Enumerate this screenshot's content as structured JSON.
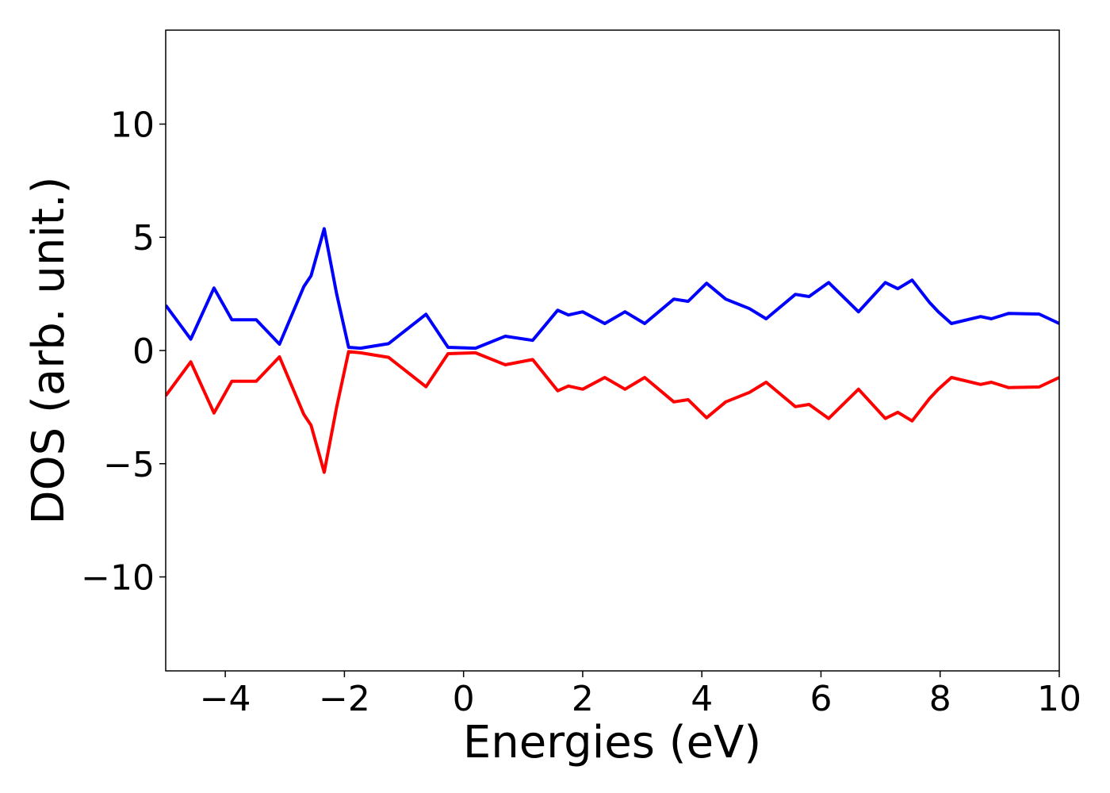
{
  "chart_data": {
    "type": "line",
    "xlabel": "Energies (eV)",
    "ylabel": "DOS (arb. unit.)",
    "xlim": [
      -5,
      10
    ],
    "ylim": [
      -14.15,
      14.15
    ],
    "xticks": [
      {
        "value": -4,
        "label": "−4"
      },
      {
        "value": -2,
        "label": "−2"
      },
      0,
      2,
      4,
      6,
      8,
      10
    ],
    "yticks": [
      {
        "value": -10,
        "label": "−10"
      },
      {
        "value": -5,
        "label": "−5"
      },
      0,
      5,
      10
    ],
    "x": [
      -5,
      -4.58,
      -4.19,
      -3.89,
      -3.48,
      -3.09,
      -2.68,
      -2.56,
      -2.34,
      -2.13,
      -1.93,
      -1.73,
      -1.26,
      -0.63,
      -0.26,
      0.2,
      0.7,
      1.16,
      1.58,
      1.76,
      2.0,
      2.37,
      2.71,
      3.04,
      3.53,
      3.77,
      4.08,
      4.4,
      4.8,
      5.08,
      5.57,
      5.8,
      6.13,
      6.63,
      7.08,
      7.29,
      7.53,
      7.82,
      7.97,
      8.19,
      8.68,
      8.86,
      9.15,
      9.66,
      10
    ],
    "series": [
      {
        "color": "#0000ff",
        "values": [
          2.0,
          0.5,
          2.76,
          1.36,
          1.36,
          0.28,
          2.83,
          3.3,
          5.38,
          2.5,
          0.14,
          0.1,
          0.3,
          1.6,
          0.14,
          0.1,
          0.63,
          0.45,
          1.78,
          1.57,
          1.71,
          1.19,
          1.71,
          1.19,
          2.27,
          2.17,
          2.97,
          2.27,
          1.85,
          1.4,
          2.48,
          2.38,
          3.0,
          1.71,
          3.0,
          2.73,
          3.11,
          2.13,
          1.71,
          1.19,
          1.5,
          1.4,
          1.64,
          1.61,
          1.19
        ]
      },
      {
        "color": "#ff0000",
        "values": [
          -2.0,
          -0.5,
          -2.76,
          -1.36,
          -1.36,
          -0.28,
          -2.83,
          -3.3,
          -5.38,
          -2.5,
          -0.05,
          -0.1,
          -0.3,
          -1.6,
          -0.14,
          -0.1,
          -0.63,
          -0.4,
          -1.78,
          -1.57,
          -1.71,
          -1.19,
          -1.71,
          -1.19,
          -2.27,
          -2.17,
          -2.97,
          -2.27,
          -1.85,
          -1.4,
          -2.48,
          -2.38,
          -3.0,
          -1.71,
          -3.0,
          -2.73,
          -3.11,
          -2.13,
          -1.71,
          -1.19,
          -1.5,
          -1.4,
          -1.64,
          -1.61,
          -1.19
        ]
      }
    ]
  }
}
